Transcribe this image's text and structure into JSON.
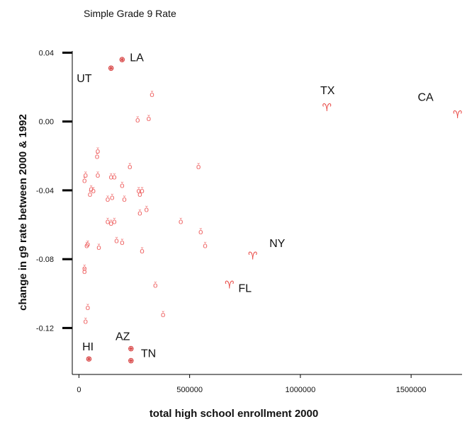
{
  "chart_data": {
    "type": "scatter",
    "title": "Simple Grade 9 Rate",
    "xlabel": "total high school enrollment 2000",
    "ylabel": "change in g9 rate between 2000 & 1992",
    "xlim": [
      -30000,
      1730000
    ],
    "ylim": [
      -0.147,
      0.041
    ],
    "xticks": [
      0,
      500000,
      1000000,
      1500000
    ],
    "xtick_labels": [
      "0",
      "500000",
      "1000000",
      "1500000"
    ],
    "yticks": [
      0.04,
      0.0,
      -0.04,
      -0.08,
      -0.12
    ],
    "ytick_labels": [
      "0.04",
      "0.00",
      "-0.04",
      "-0.08",
      "-0.12"
    ],
    "grid": false,
    "colors": {
      "marker": "#ef6a6a",
      "marker_large": "#e8433f",
      "asterisk": "#d94a4a"
    },
    "series": [
      {
        "marker": "small-glyph",
        "points": [
          {
            "x": 330000,
            "y": 0.016
          },
          {
            "x": 265000,
            "y": 0.001
          },
          {
            "x": 315000,
            "y": 0.002
          },
          {
            "x": 85000,
            "y": -0.017
          },
          {
            "x": 82000,
            "y": -0.02
          },
          {
            "x": 230000,
            "y": -0.026
          },
          {
            "x": 540000,
            "y": -0.026
          },
          {
            "x": 30000,
            "y": -0.031
          },
          {
            "x": 25000,
            "y": -0.034
          },
          {
            "x": 85000,
            "y": -0.031
          },
          {
            "x": 145000,
            "y": -0.032
          },
          {
            "x": 160000,
            "y": -0.032
          },
          {
            "x": 195000,
            "y": -0.037
          },
          {
            "x": 55000,
            "y": -0.039
          },
          {
            "x": 65000,
            "y": -0.04
          },
          {
            "x": 50000,
            "y": -0.042
          },
          {
            "x": 270000,
            "y": -0.04
          },
          {
            "x": 285000,
            "y": -0.04
          },
          {
            "x": 275000,
            "y": -0.042
          },
          {
            "x": 130000,
            "y": -0.045
          },
          {
            "x": 150000,
            "y": -0.044
          },
          {
            "x": 205000,
            "y": -0.045
          },
          {
            "x": 305000,
            "y": -0.051
          },
          {
            "x": 275000,
            "y": -0.053
          },
          {
            "x": 130000,
            "y": -0.058
          },
          {
            "x": 145000,
            "y": -0.059
          },
          {
            "x": 160000,
            "y": -0.058
          },
          {
            "x": 460000,
            "y": -0.058
          },
          {
            "x": 550000,
            "y": -0.064
          },
          {
            "x": 170000,
            "y": -0.069
          },
          {
            "x": 195000,
            "y": -0.07
          },
          {
            "x": 40000,
            "y": -0.071
          },
          {
            "x": 35000,
            "y": -0.072
          },
          {
            "x": 90000,
            "y": -0.073
          },
          {
            "x": 285000,
            "y": -0.075
          },
          {
            "x": 570000,
            "y": -0.072
          },
          {
            "x": 25000,
            "y": -0.085
          },
          {
            "x": 25000,
            "y": -0.087
          },
          {
            "x": 345000,
            "y": -0.095
          },
          {
            "x": 40000,
            "y": -0.108
          },
          {
            "x": 380000,
            "y": -0.112
          },
          {
            "x": 30000,
            "y": -0.116
          }
        ]
      },
      {
        "marker": "large-glyph",
        "points": [
          {
            "x": 1120000,
            "y": 0.008
          },
          {
            "x": 1710000,
            "y": 0.004
          },
          {
            "x": 785000,
            "y": -0.078
          },
          {
            "x": 680000,
            "y": -0.095
          }
        ]
      },
      {
        "marker": "asterisk",
        "points": [
          {
            "x": 195000,
            "y": 0.036
          },
          {
            "x": 145000,
            "y": 0.031
          },
          {
            "x": 45000,
            "y": -0.138
          },
          {
            "x": 235000,
            "y": -0.132
          },
          {
            "x": 235000,
            "y": -0.139
          }
        ]
      }
    ],
    "annotations": [
      {
        "text": "LA",
        "x": 230000,
        "y": 0.035
      },
      {
        "text": "UT",
        "x": -10000,
        "y": 0.023
      },
      {
        "text": "TX",
        "x": 1090000,
        "y": 0.016
      },
      {
        "text": "CA",
        "x": 1530000,
        "y": 0.012
      },
      {
        "text": "NY",
        "x": 860000,
        "y": -0.073
      },
      {
        "text": "FL",
        "x": 720000,
        "y": -0.099
      },
      {
        "text": "AZ",
        "x": 165000,
        "y": -0.127
      },
      {
        "text": "HI",
        "x": 15000,
        "y": -0.133
      },
      {
        "text": "TN",
        "x": 280000,
        "y": -0.137
      }
    ]
  }
}
